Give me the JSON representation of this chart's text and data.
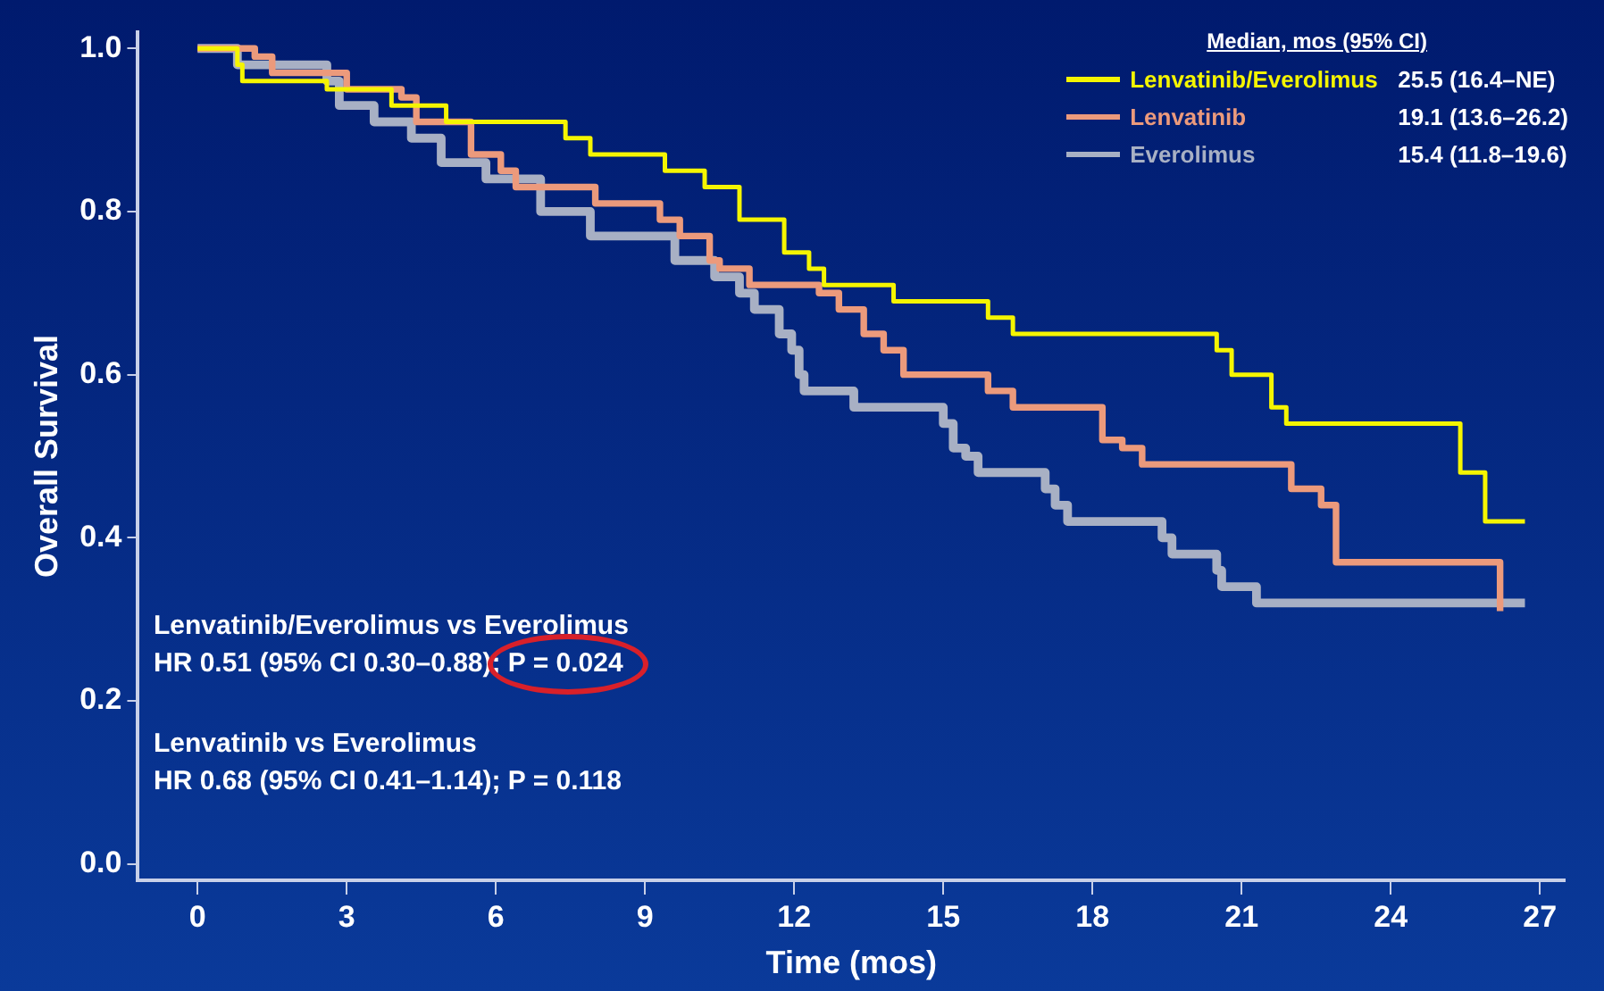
{
  "chart_data": {
    "type": "step",
    "xlabel": "Time (mos)",
    "ylabel": "Overall Survival",
    "legend_title": "Median, mos (95% CI)",
    "legend": "top right",
    "grid": false,
    "marker": "none",
    "line_style": "solid",
    "xlim": [
      -1.2,
      27.5
    ],
    "xticks": [
      0,
      3,
      6,
      9,
      12,
      15,
      18,
      21,
      24,
      27
    ],
    "ylim": [
      -0.02,
      1.02
    ],
    "yticks": [
      {
        "value": 0,
        "label": "0.0"
      },
      {
        "value": 0.2,
        "label": "0.2"
      },
      {
        "value": 0.4,
        "label": "0.4"
      },
      {
        "value": 0.6,
        "label": "0.6"
      },
      {
        "value": 0.8,
        "label": "0.8"
      },
      {
        "value": 1,
        "label": "1.0"
      }
    ],
    "series": [
      {
        "name": "Lenvatinib/Everolimus",
        "color": "#f5f500",
        "x": [
          0,
          0.8,
          0.9,
          2.6,
          3.9,
          5.0,
          7.4,
          7.9,
          9.4,
          10.2,
          10.9,
          11.8,
          12.3,
          12.6,
          14.0,
          15.9,
          16.4,
          20.5,
          20.8,
          21.6,
          21.9,
          25.4,
          25.9,
          26.7
        ],
        "values": [
          1,
          0.98,
          0.96,
          0.95,
          0.93,
          0.91,
          0.89,
          0.87,
          0.85,
          0.83,
          0.79,
          0.75,
          0.73,
          0.71,
          0.69,
          0.67,
          0.65,
          0.63,
          0.6,
          0.56,
          0.54,
          0.48,
          0.42,
          0.42
        ]
      },
      {
        "name": "Lenvatinib",
        "color": "#ec9a7c",
        "x": [
          0,
          1.15,
          1.5,
          3.0,
          4.1,
          4.4,
          5.5,
          6.1,
          6.4,
          8.0,
          9.3,
          9.7,
          10.3,
          10.5,
          11.1,
          12.5,
          12.9,
          13.4,
          13.8,
          14.2,
          15.9,
          16.4,
          18.2,
          18.6,
          19.0,
          22.0,
          22.6,
          22.9,
          26.2
        ],
        "values": [
          1,
          0.99,
          0.97,
          0.95,
          0.94,
          0.91,
          0.87,
          0.85,
          0.83,
          0.81,
          0.79,
          0.77,
          0.74,
          0.73,
          0.71,
          0.7,
          0.68,
          0.65,
          0.63,
          0.6,
          0.58,
          0.56,
          0.52,
          0.51,
          0.49,
          0.46,
          0.44,
          0.37,
          0.31
        ]
      },
      {
        "name": "Everolimus",
        "color": "#a8b0c4",
        "x": [
          0,
          0.8,
          2.6,
          2.85,
          3.55,
          4.3,
          4.9,
          5.8,
          6.9,
          7.9,
          9.6,
          10.4,
          10.9,
          11.2,
          11.7,
          11.95,
          12.1,
          12.2,
          13.2,
          15.0,
          15.2,
          15.45,
          15.7,
          17.05,
          17.25,
          17.5,
          19.4,
          19.6,
          20.5,
          20.6,
          21.3,
          26.7
        ],
        "values": [
          1,
          0.98,
          0.96,
          0.93,
          0.91,
          0.89,
          0.86,
          0.84,
          0.8,
          0.77,
          0.74,
          0.72,
          0.7,
          0.68,
          0.65,
          0.63,
          0.6,
          0.58,
          0.56,
          0.54,
          0.51,
          0.5,
          0.48,
          0.46,
          0.44,
          0.42,
          0.4,
          0.38,
          0.36,
          0.34,
          0.32,
          0.32
        ]
      }
    ],
    "annotations": [
      "25.5 (16.4–NE)",
      "19.1 (13.6–26.2)",
      "15.4 (11.8–19.6)",
      "Lenvatinib/Everolimus vs Everolimus",
      "HR 0.51 (95% CI 0.30–0.88); P = 0.024",
      "Lenvatinib vs Everolimus",
      "HR 0.68 (95% CI 0.41–1.14); P = 0.118"
    ]
  }
}
